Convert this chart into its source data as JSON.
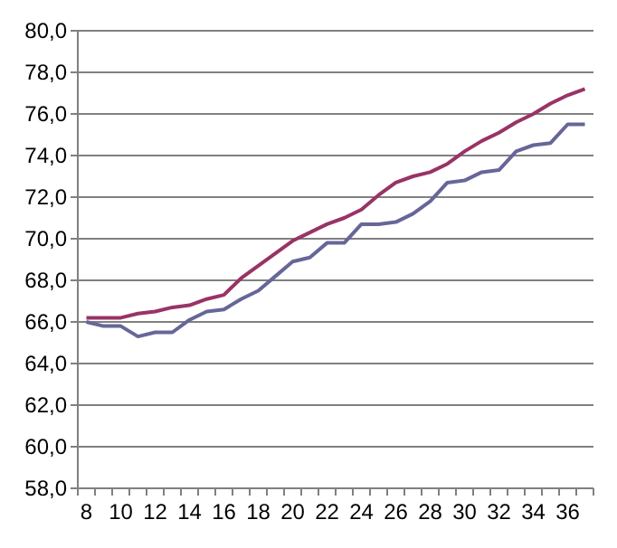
{
  "chart_data": {
    "type": "line",
    "categories": [
      "8",
      null,
      "10",
      null,
      "12",
      null,
      "14",
      null,
      "16",
      null,
      "18",
      null,
      "20",
      null,
      "22",
      null,
      "24",
      null,
      "26",
      null,
      "28",
      null,
      "30",
      null,
      "32",
      null,
      "34",
      null,
      "36",
      null
    ],
    "series": [
      {
        "color": "#993366",
        "values": [
          66.2,
          66.2,
          66.2,
          66.4,
          66.5,
          66.7,
          66.8,
          67.1,
          67.3,
          68.1,
          68.7,
          69.3,
          69.9,
          70.3,
          70.7,
          71.0,
          71.4,
          72.1,
          72.7,
          73.0,
          73.2,
          73.6,
          74.2,
          74.7,
          75.1,
          75.6,
          76.0,
          76.5,
          76.9,
          77.2
        ]
      },
      {
        "color": "#666699",
        "values": [
          66.0,
          65.8,
          65.8,
          65.3,
          65.5,
          65.5,
          66.1,
          66.5,
          66.6,
          67.1,
          67.5,
          68.2,
          68.9,
          69.1,
          69.8,
          69.8,
          70.7,
          70.7,
          70.8,
          71.2,
          71.8,
          72.7,
          72.8,
          73.2,
          73.3,
          74.2,
          74.5,
          74.6,
          75.5,
          75.5
        ]
      }
    ],
    "ylim": [
      58,
      80
    ],
    "yticks": [
      {
        "value": 58,
        "label": "58,0"
      },
      {
        "value": 60,
        "label": "60,0"
      },
      {
        "value": 62,
        "label": "62,0"
      },
      {
        "value": 64,
        "label": "64,0"
      },
      {
        "value": 66,
        "label": "66,0"
      },
      {
        "value": 68,
        "label": "68,0"
      },
      {
        "value": 70,
        "label": "70,0"
      },
      {
        "value": 72,
        "label": "72,0"
      },
      {
        "value": 74,
        "label": "74,0"
      },
      {
        "value": 76,
        "label": "76,0"
      },
      {
        "value": 78,
        "label": "78,0"
      },
      {
        "value": 80,
        "label": "80,0"
      }
    ],
    "grid": "y",
    "marker": "none",
    "line_style": "solid"
  }
}
